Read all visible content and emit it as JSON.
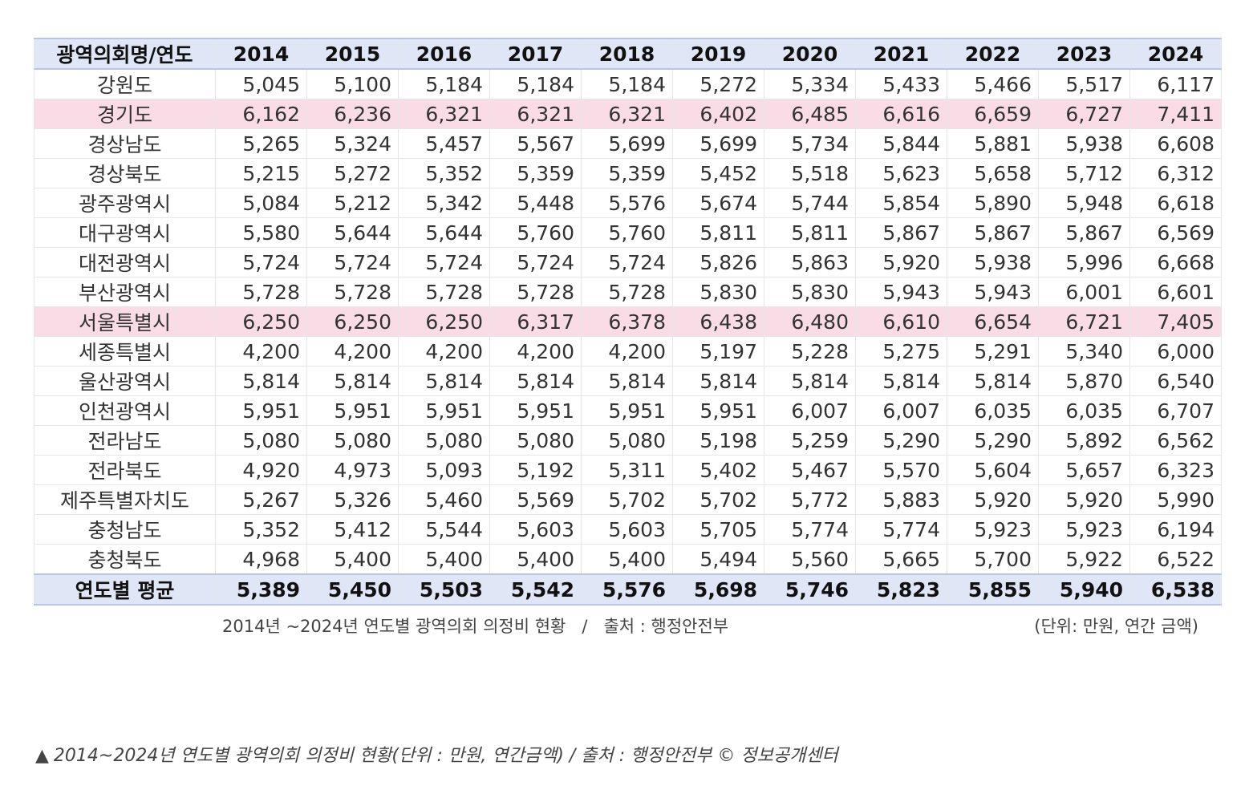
{
  "table": {
    "header_label": "광역의회명/연도",
    "years": [
      "2014",
      "2015",
      "2016",
      "2017",
      "2018",
      "2019",
      "2020",
      "2021",
      "2022",
      "2023",
      "2024"
    ],
    "rows": [
      {
        "region": "강원도",
        "values": [
          "5,045",
          "5,100",
          "5,184",
          "5,184",
          "5,184",
          "5,272",
          "5,334",
          "5,433",
          "5,466",
          "5,517",
          "6,117"
        ],
        "highlight": false
      },
      {
        "region": "경기도",
        "values": [
          "6,162",
          "6,236",
          "6,321",
          "6,321",
          "6,321",
          "6,402",
          "6,485",
          "6,616",
          "6,659",
          "6,727",
          "7,411"
        ],
        "highlight": true
      },
      {
        "region": "경상남도",
        "values": [
          "5,265",
          "5,324",
          "5,457",
          "5,567",
          "5,699",
          "5,699",
          "5,734",
          "5,844",
          "5,881",
          "5,938",
          "6,608"
        ],
        "highlight": false
      },
      {
        "region": "경상북도",
        "values": [
          "5,215",
          "5,272",
          "5,352",
          "5,359",
          "5,359",
          "5,452",
          "5,518",
          "5,623",
          "5,658",
          "5,712",
          "6,312"
        ],
        "highlight": false
      },
      {
        "region": "광주광역시",
        "values": [
          "5,084",
          "5,212",
          "5,342",
          "5,448",
          "5,576",
          "5,674",
          "5,744",
          "5,854",
          "5,890",
          "5,948",
          "6,618"
        ],
        "highlight": false
      },
      {
        "region": "대구광역시",
        "values": [
          "5,580",
          "5,644",
          "5,644",
          "5,760",
          "5,760",
          "5,811",
          "5,811",
          "5,867",
          "5,867",
          "5,867",
          "6,569"
        ],
        "highlight": false
      },
      {
        "region": "대전광역시",
        "values": [
          "5,724",
          "5,724",
          "5,724",
          "5,724",
          "5,724",
          "5,826",
          "5,863",
          "5,920",
          "5,938",
          "5,996",
          "6,668"
        ],
        "highlight": false
      },
      {
        "region": "부산광역시",
        "values": [
          "5,728",
          "5,728",
          "5,728",
          "5,728",
          "5,728",
          "5,830",
          "5,830",
          "5,943",
          "5,943",
          "6,001",
          "6,601"
        ],
        "highlight": false
      },
      {
        "region": "서울특별시",
        "values": [
          "6,250",
          "6,250",
          "6,250",
          "6,317",
          "6,378",
          "6,438",
          "6,480",
          "6,610",
          "6,654",
          "6,721",
          "7,405"
        ],
        "highlight": true
      },
      {
        "region": "세종특별시",
        "values": [
          "4,200",
          "4,200",
          "4,200",
          "4,200",
          "4,200",
          "5,197",
          "5,228",
          "5,275",
          "5,291",
          "5,340",
          "6,000"
        ],
        "highlight": false
      },
      {
        "region": "울산광역시",
        "values": [
          "5,814",
          "5,814",
          "5,814",
          "5,814",
          "5,814",
          "5,814",
          "5,814",
          "5,814",
          "5,814",
          "5,870",
          "6,540"
        ],
        "highlight": false
      },
      {
        "region": "인천광역시",
        "values": [
          "5,951",
          "5,951",
          "5,951",
          "5,951",
          "5,951",
          "5,951",
          "6,007",
          "6,007",
          "6,035",
          "6,035",
          "6,707"
        ],
        "highlight": false
      },
      {
        "region": "전라남도",
        "values": [
          "5,080",
          "5,080",
          "5,080",
          "5,080",
          "5,080",
          "5,198",
          "5,259",
          "5,290",
          "5,290",
          "5,892",
          "6,562"
        ],
        "highlight": false
      },
      {
        "region": "전라북도",
        "values": [
          "4,920",
          "4,973",
          "5,093",
          "5,192",
          "5,311",
          "5,402",
          "5,467",
          "5,570",
          "5,604",
          "5,657",
          "6,323"
        ],
        "highlight": false
      },
      {
        "region": "제주특별자치도",
        "values": [
          "5,267",
          "5,326",
          "5,460",
          "5,569",
          "5,702",
          "5,702",
          "5,772",
          "5,883",
          "5,920",
          "5,920",
          "5,990"
        ],
        "highlight": false
      },
      {
        "region": "충청남도",
        "values": [
          "5,352",
          "5,412",
          "5,544",
          "5,603",
          "5,603",
          "5,705",
          "5,774",
          "5,774",
          "5,923",
          "5,923",
          "6,194"
        ],
        "highlight": false
      },
      {
        "region": "충청북도",
        "values": [
          "4,968",
          "5,400",
          "5,400",
          "5,400",
          "5,400",
          "5,494",
          "5,560",
          "5,665",
          "5,700",
          "5,922",
          "6,522"
        ],
        "highlight": false
      }
    ],
    "footer": {
      "label": "연도별 평균",
      "values": [
        "5,389",
        "5,450",
        "5,503",
        "5,542",
        "5,576",
        "5,698",
        "5,746",
        "5,823",
        "5,855",
        "5,940",
        "6,538"
      ]
    }
  },
  "source_line": {
    "text": "2014년 ~2024년 연도별 광역의회 의정비 현황   /   출처 : 행정안전부",
    "unit": "(단위: 만원, 연간 금액)"
  },
  "caption": {
    "marker": "▲",
    "text": "2014~2024년 연도별 광역의회 의정비 현황(단위 : 만원, 연간금액) / 출처 : 행정안전부 © 정보공개센터"
  },
  "colors": {
    "header_bg": "#dfe6f6",
    "highlight_row_bg": "#fadce6",
    "footer_bg": "#dfe6f6"
  }
}
